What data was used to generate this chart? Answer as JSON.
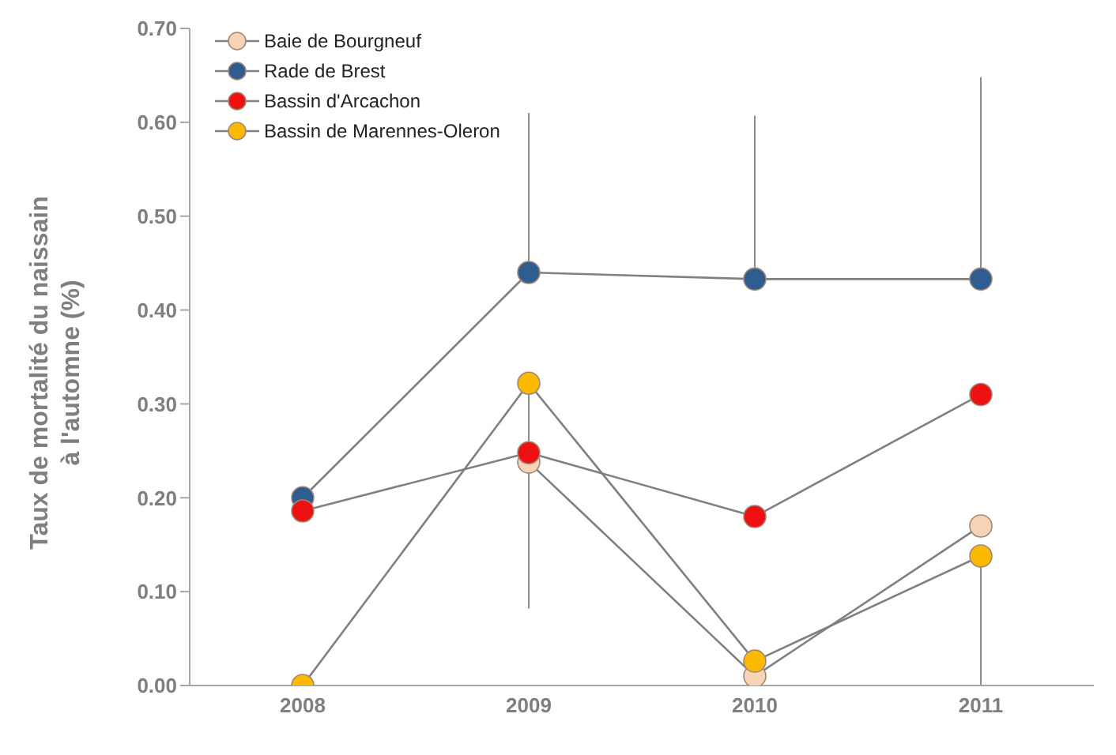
{
  "chart_data": {
    "type": "line",
    "ylabel": "Taux de mortalité du naissain à l'automne (%)",
    "categories": [
      "2008",
      "2009",
      "2010",
      "2011"
    ],
    "series": [
      {
        "name": "Baie de Bourgneuf",
        "color": "#f9d3b5",
        "values": [
          null,
          0.238,
          0.01,
          0.17
        ]
      },
      {
        "name": "Rade de Brest",
        "color": "#2f5d8f",
        "values": [
          0.2,
          0.44,
          0.433,
          0.433
        ],
        "errors": [
          null,
          [
            0.44,
            0.61
          ],
          [
            0.433,
            0.607
          ],
          [
            0.433,
            0.648
          ]
        ]
      },
      {
        "name": "Bassin d'Arcachon",
        "color": "#ee1111",
        "values": [
          0.186,
          0.248,
          0.18,
          0.31
        ]
      },
      {
        "name": "Bassin de Marennes-Oleron",
        "color": "#fbb900",
        "values": [
          0.0,
          0.322,
          0.026,
          0.138
        ],
        "errors": [
          null,
          [
            0.082,
            0.322
          ],
          null,
          [
            0,
            0.138
          ]
        ]
      }
    ],
    "ylim": [
      0,
      0.7
    ],
    "yticks": [
      {
        "value": 0,
        "label": "0.00"
      },
      {
        "value": 0.1,
        "label": "0.10"
      },
      {
        "value": 0.2,
        "label": "0.20"
      },
      {
        "value": 0.3,
        "label": "0.30"
      },
      {
        "value": 0.4,
        "label": "0.40"
      },
      {
        "value": 0.5,
        "label": "0.50"
      },
      {
        "value": 0.6,
        "label": "0.60"
      },
      {
        "value": 0.7,
        "label": "0.70"
      }
    ],
    "grid": false,
    "legend": "top left",
    "marker": "circle",
    "line_style": "solid"
  }
}
